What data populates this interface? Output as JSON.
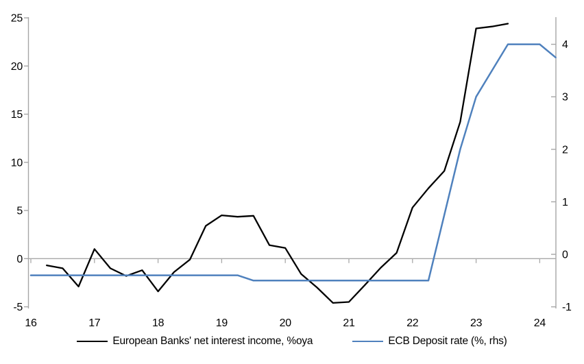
{
  "chart_data": {
    "type": "line",
    "title": "",
    "grid": "zero-line-only",
    "legend_position": "bottom-center",
    "x_axis": {
      "min": 16,
      "max": 24.25,
      "tick_values": [
        16,
        17,
        18,
        19,
        20,
        21,
        22,
        23,
        24
      ],
      "tick_labels": [
        "16",
        "17",
        "18",
        "19",
        "20",
        "21",
        "22",
        "23",
        "24"
      ]
    },
    "left_axis": {
      "range": [
        -5,
        25.1
      ],
      "tick_values": [
        25,
        20,
        15,
        10,
        5,
        0,
        -5
      ],
      "tick_labels": [
        "25",
        "20",
        "15",
        "10",
        "5",
        "0",
        "-5"
      ]
    },
    "right_axis": {
      "range": [
        -1,
        4.55
      ],
      "tick_values": [
        4,
        3,
        2,
        1,
        0,
        -1
      ],
      "tick_labels": [
        "4",
        "3",
        "2",
        "1",
        "0",
        "-1"
      ]
    },
    "series": [
      {
        "name": "European Banks' net interest income, %oya",
        "color": "#000000",
        "axis": "left",
        "x": [
          16.25,
          16.5,
          16.75,
          17.0,
          17.25,
          17.5,
          17.75,
          18.0,
          18.25,
          18.5,
          18.75,
          19.0,
          19.25,
          19.5,
          19.75,
          20.0,
          20.25,
          20.5,
          20.75,
          21.0,
          21.25,
          21.5,
          21.75,
          22.0,
          22.25,
          22.5,
          22.75,
          23.0,
          23.25,
          23.5
        ],
        "values": [
          -0.7,
          -1.0,
          -2.9,
          1.0,
          -1.0,
          -1.8,
          -1.2,
          -3.4,
          -1.4,
          -0.1,
          3.4,
          4.5,
          4.35,
          4.45,
          1.4,
          1.1,
          -1.6,
          -3.0,
          -4.6,
          -4.5,
          -2.75,
          -0.95,
          0.6,
          5.3,
          7.3,
          9.1,
          14.2,
          23.9,
          24.1,
          24.4
        ]
      },
      {
        "name": "ECB Deposit rate (%, rhs)",
        "color": "#4f81bd",
        "axis": "right",
        "x": [
          16.0,
          16.25,
          16.5,
          16.75,
          17.0,
          17.25,
          17.5,
          17.75,
          18.0,
          18.25,
          18.5,
          18.75,
          19.0,
          19.25,
          19.5,
          19.75,
          20.0,
          20.25,
          20.5,
          20.75,
          21.0,
          21.25,
          21.5,
          21.75,
          22.0,
          22.25,
          22.5,
          22.75,
          23.0,
          23.25,
          23.5,
          23.75,
          24.0,
          24.25
        ],
        "values": [
          -0.4,
          -0.4,
          -0.4,
          -0.4,
          -0.4,
          -0.4,
          -0.4,
          -0.4,
          -0.4,
          -0.4,
          -0.4,
          -0.4,
          -0.4,
          -0.4,
          -0.5,
          -0.5,
          -0.5,
          -0.5,
          -0.5,
          -0.5,
          -0.5,
          -0.5,
          -0.5,
          -0.5,
          -0.5,
          -0.5,
          0.75,
          2.0,
          3.0,
          3.5,
          4.0,
          4.0,
          4.0,
          3.75
        ]
      }
    ]
  },
  "legend": {
    "items": [
      {
        "label": "European Banks' net interest income, %oya",
        "color": "#000000"
      },
      {
        "label": "ECB Deposit rate (%, rhs)",
        "color": "#4f81bd"
      }
    ]
  },
  "colors": {
    "axis": "#a6a6a6",
    "zero_gridline": "#a9a9a9",
    "text": "#000000",
    "background": "#ffffff"
  }
}
